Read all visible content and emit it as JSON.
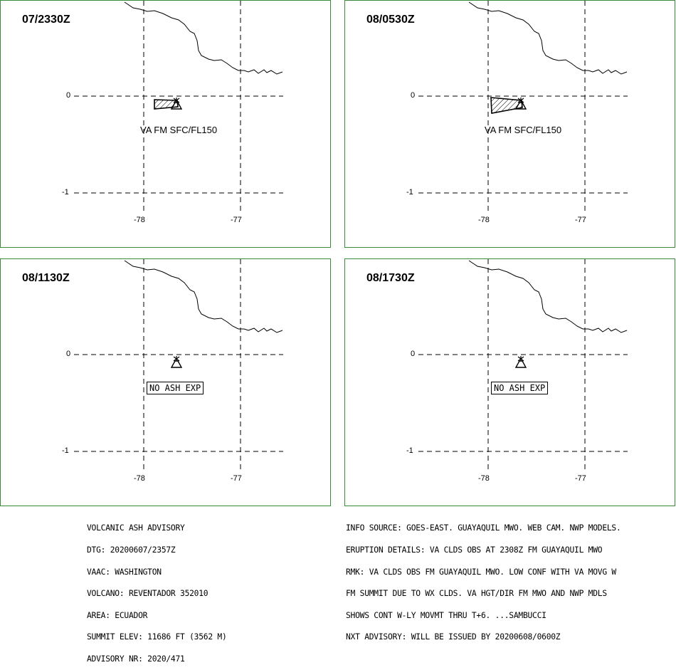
{
  "panels": [
    {
      "time": "07/2330Z",
      "label": "VA FM SFC/FL150",
      "no_ash": ""
    },
    {
      "time": "08/0530Z",
      "label": "VA FM SFC/FL150",
      "no_ash": ""
    },
    {
      "time": "08/1130Z",
      "label": "",
      "no_ash": "NO ASH EXP"
    },
    {
      "time": "08/1730Z",
      "label": "",
      "no_ash": "NO ASH EXP"
    }
  ],
  "grid": {
    "lat_ticks": [
      "0",
      "-1"
    ],
    "lon_ticks": [
      "-78",
      "-77"
    ]
  },
  "advisory": {
    "lines": [
      "VOLCANIC ASH ADVISORY",
      "DTG: 20200607/2357Z",
      "VAAC: WASHINGTON",
      "VOLCANO: REVENTADOR 352010",
      "AREA: ECUADOR",
      "SUMMIT ELEV: 11686 FT (3562 M)",
      "ADVISORY NR: 2020/471"
    ]
  },
  "info": {
    "lines": [
      "INFO SOURCE: GOES-EAST. GUAYAQUIL MWO. WEB CAM. NWP MODELS.",
      "ERUPTION DETAILS: VA CLDS OBS AT 2308Z FM GUAYAQUIL MWO",
      "RMK: VA CLDS OBS FM GUAYAQUIL MWO. LOW CONF WITH VA MOVG W",
      "FM SUMMIT DUE TO WX CLDS. VA HGT/DIR FM MWO AND NWP MDLS",
      "SHOWS CONT W-LY MOVMT THRU T+6. ...SAMBUCCI",
      "NXT ADVISORY: WILL BE ISSUED BY 20200608/0600Z"
    ]
  },
  "colors": {
    "frame": "#3a8a3a",
    "ink": "#000000"
  },
  "icons": {
    "volcano": "volcano-symbol-icon"
  }
}
